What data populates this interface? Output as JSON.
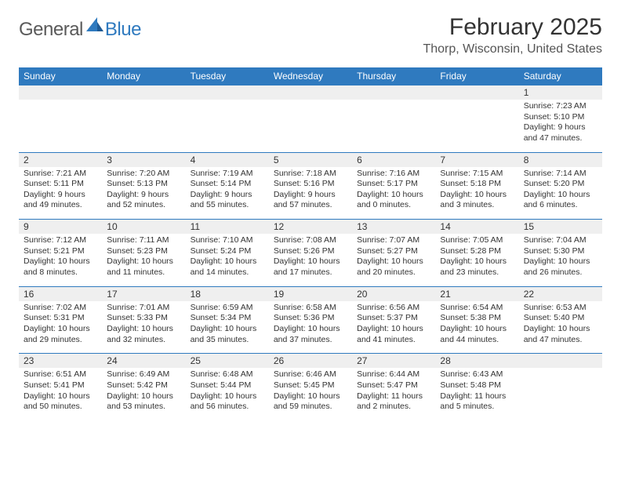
{
  "logo": {
    "general": "General",
    "blue": "Blue"
  },
  "title": "February 2025",
  "location": "Thorp, Wisconsin, United States",
  "colors": {
    "brand": "#2f7abf",
    "headerText": "#ffffff",
    "numrowBg": "#efefef"
  },
  "dayHeaders": [
    "Sunday",
    "Monday",
    "Tuesday",
    "Wednesday",
    "Thursday",
    "Friday",
    "Saturday"
  ],
  "weeks": [
    [
      null,
      null,
      null,
      null,
      null,
      null,
      {
        "n": "1",
        "sunrise": "Sunrise: 7:23 AM",
        "sunset": "Sunset: 5:10 PM",
        "daylight": "Daylight: 9 hours and 47 minutes."
      }
    ],
    [
      {
        "n": "2",
        "sunrise": "Sunrise: 7:21 AM",
        "sunset": "Sunset: 5:11 PM",
        "daylight": "Daylight: 9 hours and 49 minutes."
      },
      {
        "n": "3",
        "sunrise": "Sunrise: 7:20 AM",
        "sunset": "Sunset: 5:13 PM",
        "daylight": "Daylight: 9 hours and 52 minutes."
      },
      {
        "n": "4",
        "sunrise": "Sunrise: 7:19 AM",
        "sunset": "Sunset: 5:14 PM",
        "daylight": "Daylight: 9 hours and 55 minutes."
      },
      {
        "n": "5",
        "sunrise": "Sunrise: 7:18 AM",
        "sunset": "Sunset: 5:16 PM",
        "daylight": "Daylight: 9 hours and 57 minutes."
      },
      {
        "n": "6",
        "sunrise": "Sunrise: 7:16 AM",
        "sunset": "Sunset: 5:17 PM",
        "daylight": "Daylight: 10 hours and 0 minutes."
      },
      {
        "n": "7",
        "sunrise": "Sunrise: 7:15 AM",
        "sunset": "Sunset: 5:18 PM",
        "daylight": "Daylight: 10 hours and 3 minutes."
      },
      {
        "n": "8",
        "sunrise": "Sunrise: 7:14 AM",
        "sunset": "Sunset: 5:20 PM",
        "daylight": "Daylight: 10 hours and 6 minutes."
      }
    ],
    [
      {
        "n": "9",
        "sunrise": "Sunrise: 7:12 AM",
        "sunset": "Sunset: 5:21 PM",
        "daylight": "Daylight: 10 hours and 8 minutes."
      },
      {
        "n": "10",
        "sunrise": "Sunrise: 7:11 AM",
        "sunset": "Sunset: 5:23 PM",
        "daylight": "Daylight: 10 hours and 11 minutes."
      },
      {
        "n": "11",
        "sunrise": "Sunrise: 7:10 AM",
        "sunset": "Sunset: 5:24 PM",
        "daylight": "Daylight: 10 hours and 14 minutes."
      },
      {
        "n": "12",
        "sunrise": "Sunrise: 7:08 AM",
        "sunset": "Sunset: 5:26 PM",
        "daylight": "Daylight: 10 hours and 17 minutes."
      },
      {
        "n": "13",
        "sunrise": "Sunrise: 7:07 AM",
        "sunset": "Sunset: 5:27 PM",
        "daylight": "Daylight: 10 hours and 20 minutes."
      },
      {
        "n": "14",
        "sunrise": "Sunrise: 7:05 AM",
        "sunset": "Sunset: 5:28 PM",
        "daylight": "Daylight: 10 hours and 23 minutes."
      },
      {
        "n": "15",
        "sunrise": "Sunrise: 7:04 AM",
        "sunset": "Sunset: 5:30 PM",
        "daylight": "Daylight: 10 hours and 26 minutes."
      }
    ],
    [
      {
        "n": "16",
        "sunrise": "Sunrise: 7:02 AM",
        "sunset": "Sunset: 5:31 PM",
        "daylight": "Daylight: 10 hours and 29 minutes."
      },
      {
        "n": "17",
        "sunrise": "Sunrise: 7:01 AM",
        "sunset": "Sunset: 5:33 PM",
        "daylight": "Daylight: 10 hours and 32 minutes."
      },
      {
        "n": "18",
        "sunrise": "Sunrise: 6:59 AM",
        "sunset": "Sunset: 5:34 PM",
        "daylight": "Daylight: 10 hours and 35 minutes."
      },
      {
        "n": "19",
        "sunrise": "Sunrise: 6:58 AM",
        "sunset": "Sunset: 5:36 PM",
        "daylight": "Daylight: 10 hours and 37 minutes."
      },
      {
        "n": "20",
        "sunrise": "Sunrise: 6:56 AM",
        "sunset": "Sunset: 5:37 PM",
        "daylight": "Daylight: 10 hours and 41 minutes."
      },
      {
        "n": "21",
        "sunrise": "Sunrise: 6:54 AM",
        "sunset": "Sunset: 5:38 PM",
        "daylight": "Daylight: 10 hours and 44 minutes."
      },
      {
        "n": "22",
        "sunrise": "Sunrise: 6:53 AM",
        "sunset": "Sunset: 5:40 PM",
        "daylight": "Daylight: 10 hours and 47 minutes."
      }
    ],
    [
      {
        "n": "23",
        "sunrise": "Sunrise: 6:51 AM",
        "sunset": "Sunset: 5:41 PM",
        "daylight": "Daylight: 10 hours and 50 minutes."
      },
      {
        "n": "24",
        "sunrise": "Sunrise: 6:49 AM",
        "sunset": "Sunset: 5:42 PM",
        "daylight": "Daylight: 10 hours and 53 minutes."
      },
      {
        "n": "25",
        "sunrise": "Sunrise: 6:48 AM",
        "sunset": "Sunset: 5:44 PM",
        "daylight": "Daylight: 10 hours and 56 minutes."
      },
      {
        "n": "26",
        "sunrise": "Sunrise: 6:46 AM",
        "sunset": "Sunset: 5:45 PM",
        "daylight": "Daylight: 10 hours and 59 minutes."
      },
      {
        "n": "27",
        "sunrise": "Sunrise: 6:44 AM",
        "sunset": "Sunset: 5:47 PM",
        "daylight": "Daylight: 11 hours and 2 minutes."
      },
      {
        "n": "28",
        "sunrise": "Sunrise: 6:43 AM",
        "sunset": "Sunset: 5:48 PM",
        "daylight": "Daylight: 11 hours and 5 minutes."
      },
      null
    ]
  ]
}
